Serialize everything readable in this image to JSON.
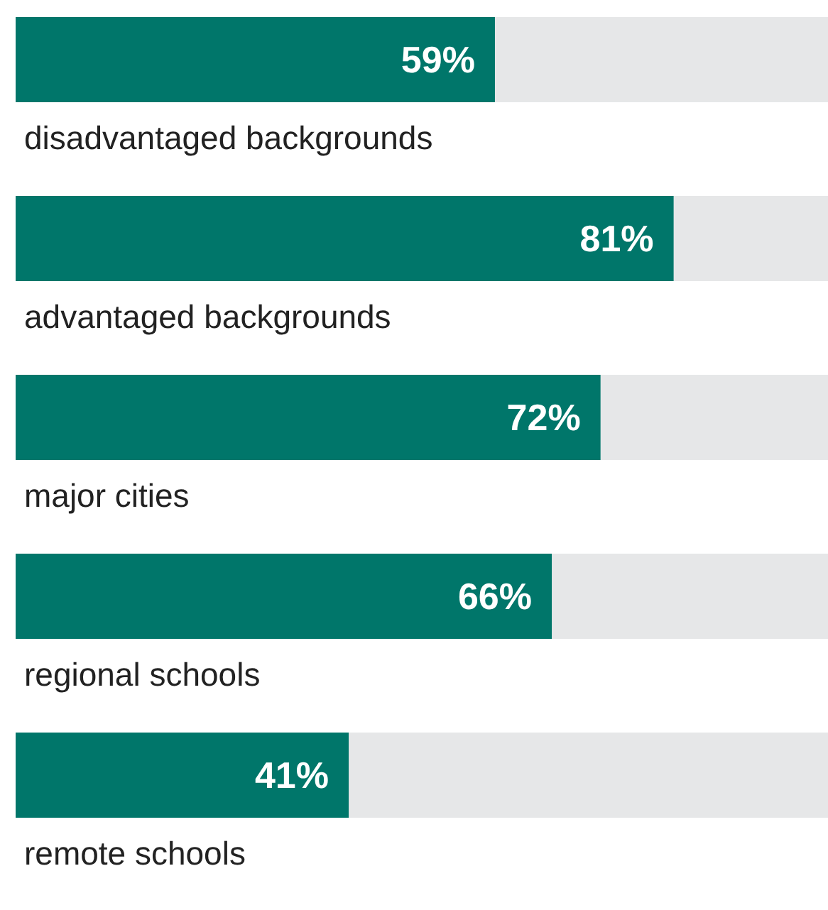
{
  "chart_data": {
    "type": "bar",
    "orientation": "horizontal",
    "categories": [
      "disadvantaged backgrounds",
      "advantaged backgrounds",
      "major cities",
      "regional schools",
      "remote schools"
    ],
    "values": [
      59,
      81,
      72,
      66,
      41
    ],
    "value_labels": [
      "59%",
      "81%",
      "72%",
      "66%",
      "41%"
    ],
    "color": "#00766a",
    "xlim": [
      0,
      100
    ]
  }
}
